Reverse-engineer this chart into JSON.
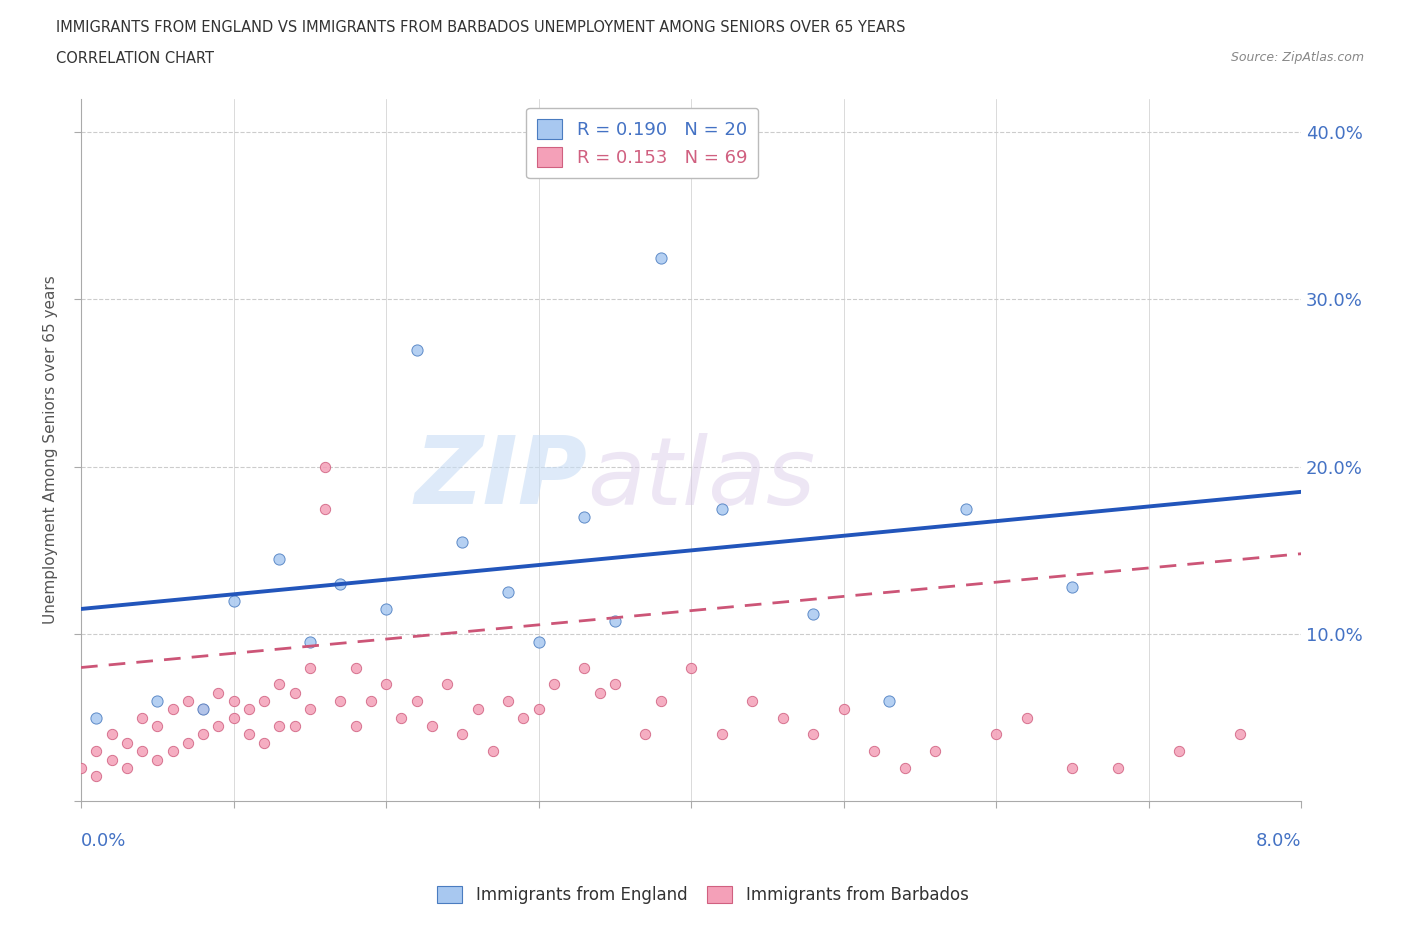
{
  "title_line1": "IMMIGRANTS FROM ENGLAND VS IMMIGRANTS FROM BARBADOS UNEMPLOYMENT AMONG SENIORS OVER 65 YEARS",
  "title_line2": "CORRELATION CHART",
  "source": "Source: ZipAtlas.com",
  "ylabel": "Unemployment Among Seniors over 65 years",
  "watermark_zip": "ZIP",
  "watermark_atlas": "atlas",
  "legend_england_r": "R = 0.190",
  "legend_england_n": "N = 20",
  "legend_barbados_r": "R = 0.153",
  "legend_barbados_n": "N = 69",
  "england_color": "#a8c8f0",
  "barbados_color": "#f4a0b8",
  "england_edge_color": "#4a7cc0",
  "barbados_edge_color": "#d06080",
  "england_line_color": "#2255bb",
  "barbados_line_color": "#cc5577",
  "england_scatter_x": [
    0.001,
    0.005,
    0.008,
    0.01,
    0.013,
    0.015,
    0.017,
    0.02,
    0.022,
    0.025,
    0.028,
    0.03,
    0.033,
    0.035,
    0.038,
    0.042,
    0.048,
    0.053,
    0.058,
    0.065
  ],
  "england_scatter_y": [
    0.05,
    0.06,
    0.055,
    0.12,
    0.145,
    0.095,
    0.13,
    0.115,
    0.27,
    0.155,
    0.125,
    0.095,
    0.17,
    0.108,
    0.325,
    0.175,
    0.112,
    0.06,
    0.175,
    0.128
  ],
  "barbados_scatter_x": [
    0.0,
    0.001,
    0.001,
    0.002,
    0.002,
    0.003,
    0.003,
    0.004,
    0.004,
    0.005,
    0.005,
    0.006,
    0.006,
    0.007,
    0.007,
    0.008,
    0.008,
    0.009,
    0.009,
    0.01,
    0.01,
    0.011,
    0.011,
    0.012,
    0.012,
    0.013,
    0.013,
    0.014,
    0.014,
    0.015,
    0.015,
    0.016,
    0.016,
    0.017,
    0.018,
    0.018,
    0.019,
    0.02,
    0.021,
    0.022,
    0.023,
    0.024,
    0.025,
    0.026,
    0.027,
    0.028,
    0.029,
    0.03,
    0.031,
    0.033,
    0.034,
    0.035,
    0.037,
    0.038,
    0.04,
    0.042,
    0.044,
    0.046,
    0.048,
    0.05,
    0.052,
    0.054,
    0.056,
    0.06,
    0.062,
    0.065,
    0.068,
    0.072,
    0.076
  ],
  "barbados_scatter_y": [
    0.02,
    0.015,
    0.03,
    0.025,
    0.04,
    0.02,
    0.035,
    0.03,
    0.05,
    0.025,
    0.045,
    0.03,
    0.055,
    0.035,
    0.06,
    0.04,
    0.055,
    0.045,
    0.065,
    0.05,
    0.06,
    0.04,
    0.055,
    0.035,
    0.06,
    0.045,
    0.07,
    0.045,
    0.065,
    0.055,
    0.08,
    0.2,
    0.175,
    0.06,
    0.045,
    0.08,
    0.06,
    0.07,
    0.05,
    0.06,
    0.045,
    0.07,
    0.04,
    0.055,
    0.03,
    0.06,
    0.05,
    0.055,
    0.07,
    0.08,
    0.065,
    0.07,
    0.04,
    0.06,
    0.08,
    0.04,
    0.06,
    0.05,
    0.04,
    0.055,
    0.03,
    0.02,
    0.03,
    0.04,
    0.05,
    0.02,
    0.02,
    0.03,
    0.04
  ],
  "xlim": [
    0.0,
    0.08
  ],
  "ylim": [
    0.0,
    0.42
  ],
  "england_trend_x": [
    0.0,
    0.08
  ],
  "england_trend_y": [
    0.115,
    0.185
  ],
  "barbados_trend_x": [
    0.0,
    0.08
  ],
  "barbados_trend_y": [
    0.08,
    0.148
  ],
  "grid_yticks": [
    0.1,
    0.2,
    0.3,
    0.4
  ],
  "xtick_positions": [
    0.0,
    0.01,
    0.02,
    0.03,
    0.04,
    0.05,
    0.06,
    0.07,
    0.08
  ],
  "right_ytick_labels": [
    "10.0%",
    "20.0%",
    "30.0%",
    "40.0%"
  ],
  "grid_color": "#cccccc",
  "background_color": "#ffffff",
  "text_color": "#333333",
  "axis_label_color": "#4472c4"
}
